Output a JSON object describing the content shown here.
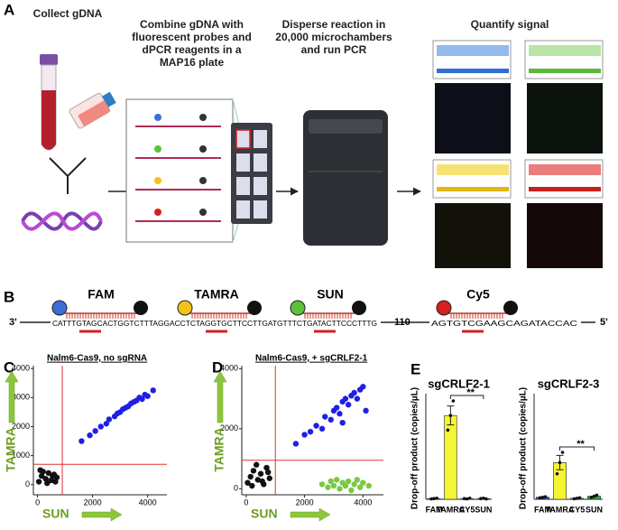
{
  "panel_a": {
    "label": "A",
    "steps": [
      "Collect gDNA",
      "Combine gDNA with fluorescent probes and dPCR reagents in a MAP16 plate",
      "Disperse reaction in 20,000 microchambers and run PCR",
      "Quantify signal"
    ]
  },
  "panel_b": {
    "label": "B",
    "end_left": "3'",
    "end_right": "5'",
    "sequence_1": "CATTTGTAGCACTGGTCTTTAGGACCTCTAGGTGCTTCCTTGATGTTTCTGATACTTCCCTTTG",
    "gap": "110",
    "sequence_2": "AGTGTCGAAGCAGATACCAC",
    "probes": [
      {
        "name": "FAM",
        "color": "#3a6fd8"
      },
      {
        "name": "TAMRA",
        "color": "#f2c21b"
      },
      {
        "name": "SUN",
        "color": "#5cc13b"
      },
      {
        "name": "Cy5",
        "color": "#d42020"
      }
    ]
  },
  "chart_data": [
    {
      "type": "scatter",
      "label": "C",
      "title": "Nalm6-Cas9, no sgRNA",
      "x_label": "SUN",
      "y_label": "TAMRA",
      "xlim": [
        -150,
        4700
      ],
      "ylim": [
        -350,
        4100
      ],
      "xticks": [
        0,
        2000,
        4000
      ],
      "yticks": [
        0,
        1000,
        2000,
        3000,
        4000
      ],
      "thresholds": {
        "x": 900,
        "y": 700
      },
      "series": [
        {
          "color": "#1f1fe6",
          "x": [
            1600,
            1900,
            2100,
            2300,
            2500,
            2600,
            2800,
            2900,
            3000,
            3100,
            3200,
            3300,
            3400,
            3500,
            3600,
            3700,
            3800,
            3900,
            4000,
            4200
          ],
          "y": [
            1500,
            1700,
            1850,
            2000,
            2100,
            2250,
            2350,
            2450,
            2500,
            2600,
            2650,
            2700,
            2800,
            2850,
            2900,
            3000,
            2950,
            3100,
            3050,
            3250
          ]
        },
        {
          "color": "#111111",
          "x": [
            50,
            150,
            300,
            400,
            500,
            600,
            700,
            200,
            350,
            550,
            100,
            650
          ],
          "y": [
            100,
            300,
            200,
            400,
            150,
            350,
            250,
            450,
            50,
            300,
            500,
            100
          ]
        }
      ]
    },
    {
      "type": "scatter",
      "label": "D",
      "title": "Nalm6-Cas9, + sgCRLF2-1",
      "x_label": "SUN",
      "y_label": "TAMRA",
      "xlim": [
        -150,
        4700
      ],
      "ylim": [
        -200,
        4100
      ],
      "xticks": [
        0,
        2000,
        4000
      ],
      "yticks": [
        0,
        2000,
        4000
      ],
      "thresholds": {
        "x": 1000,
        "y": 950
      },
      "series": [
        {
          "color": "#1f1fe6",
          "x": [
            1700,
            2000,
            2200,
            2400,
            2600,
            2700,
            2900,
            3000,
            3100,
            3200,
            3300,
            3400,
            3500,
            3600,
            3700,
            3800,
            3900,
            4000,
            4100,
            3300
          ],
          "y": [
            1500,
            1800,
            1900,
            2100,
            2000,
            2400,
            2300,
            2600,
            2700,
            2500,
            2900,
            3000,
            2800,
            3100,
            3200,
            3000,
            3300,
            3400,
            2600,
            2200
          ]
        },
        {
          "color": "#7ac943",
          "x": [
            2600,
            2800,
            2900,
            3000,
            3100,
            3200,
            3300,
            3400,
            3500,
            3600,
            3700,
            3800,
            3900,
            4000,
            4200
          ],
          "y": [
            150,
            50,
            250,
            100,
            300,
            0,
            200,
            100,
            250,
            -50,
            150,
            300,
            50,
            200,
            100
          ]
        },
        {
          "color": "#111111",
          "x": [
            50,
            150,
            250,
            400,
            500,
            600,
            700,
            800,
            200,
            350,
            550,
            750
          ],
          "y": [
            200,
            400,
            600,
            300,
            500,
            150,
            700,
            350,
            100,
            800,
            250,
            550
          ]
        }
      ]
    },
    {
      "type": "bar",
      "label": "E",
      "title": "sgCRLF2-1",
      "y_label": "Drop-off product (copies/µL)",
      "categories": [
        "FAM",
        "TAMRA",
        "CY5",
        "SUN"
      ],
      "values": [
        0.1,
        11.5,
        0.1,
        0.1
      ],
      "errors": [
        0,
        1.3,
        0,
        0
      ],
      "points": [
        [
          0.05,
          0.1,
          0.15
        ],
        [
          9.5,
          11.5,
          13.5
        ],
        [
          0.1,
          0.05,
          0.15
        ],
        [
          0.1,
          0.15,
          0.05
        ]
      ],
      "colors": [
        "#3355dd",
        "#f5f531",
        "#888888",
        "#33aa33"
      ],
      "ylim": [
        0,
        14
      ],
      "significance": "**"
    },
    {
      "type": "bar",
      "title": "sgCRLF2-3",
      "y_label": "Drop-off product (copies/µL)",
      "categories": [
        "FAM",
        "TAMRA",
        "CY5",
        "SUN"
      ],
      "values": [
        0.2,
        3.6,
        0.1,
        0.3
      ],
      "errors": [
        0,
        0.7,
        0,
        0
      ],
      "points": [
        [
          0.15,
          0.2,
          0.25
        ],
        [
          2.5,
          3.6,
          4.6
        ],
        [
          0.05,
          0.1,
          0.15
        ],
        [
          0.2,
          0.3,
          0.4
        ]
      ],
      "colors": [
        "#3355dd",
        "#f5f531",
        "#888888",
        "#33aa33"
      ],
      "ylim": [
        0,
        10
      ],
      "significance": "**"
    }
  ]
}
